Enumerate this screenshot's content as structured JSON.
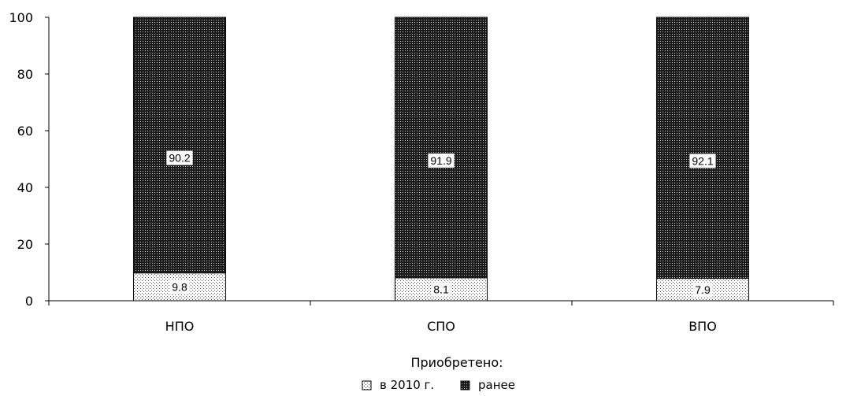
{
  "chart_data": {
    "type": "bar",
    "stacked": true,
    "categories": [
      "НПО",
      "СПО",
      "ВПО"
    ],
    "series": [
      {
        "name": "в 2010 г.",
        "values": [
          9.8,
          8.1,
          7.9
        ],
        "pattern": "light-dots"
      },
      {
        "name": "ранее",
        "values": [
          90.2,
          91.9,
          92.1
        ],
        "pattern": "dense-dots"
      }
    ],
    "ylim": [
      0,
      100
    ],
    "yticks": [
      0,
      20,
      40,
      60,
      80,
      100
    ],
    "xlabel": "",
    "ylabel": "",
    "grid": false,
    "legend": {
      "title": "Приобретено:",
      "placement": "bottom-center"
    }
  }
}
